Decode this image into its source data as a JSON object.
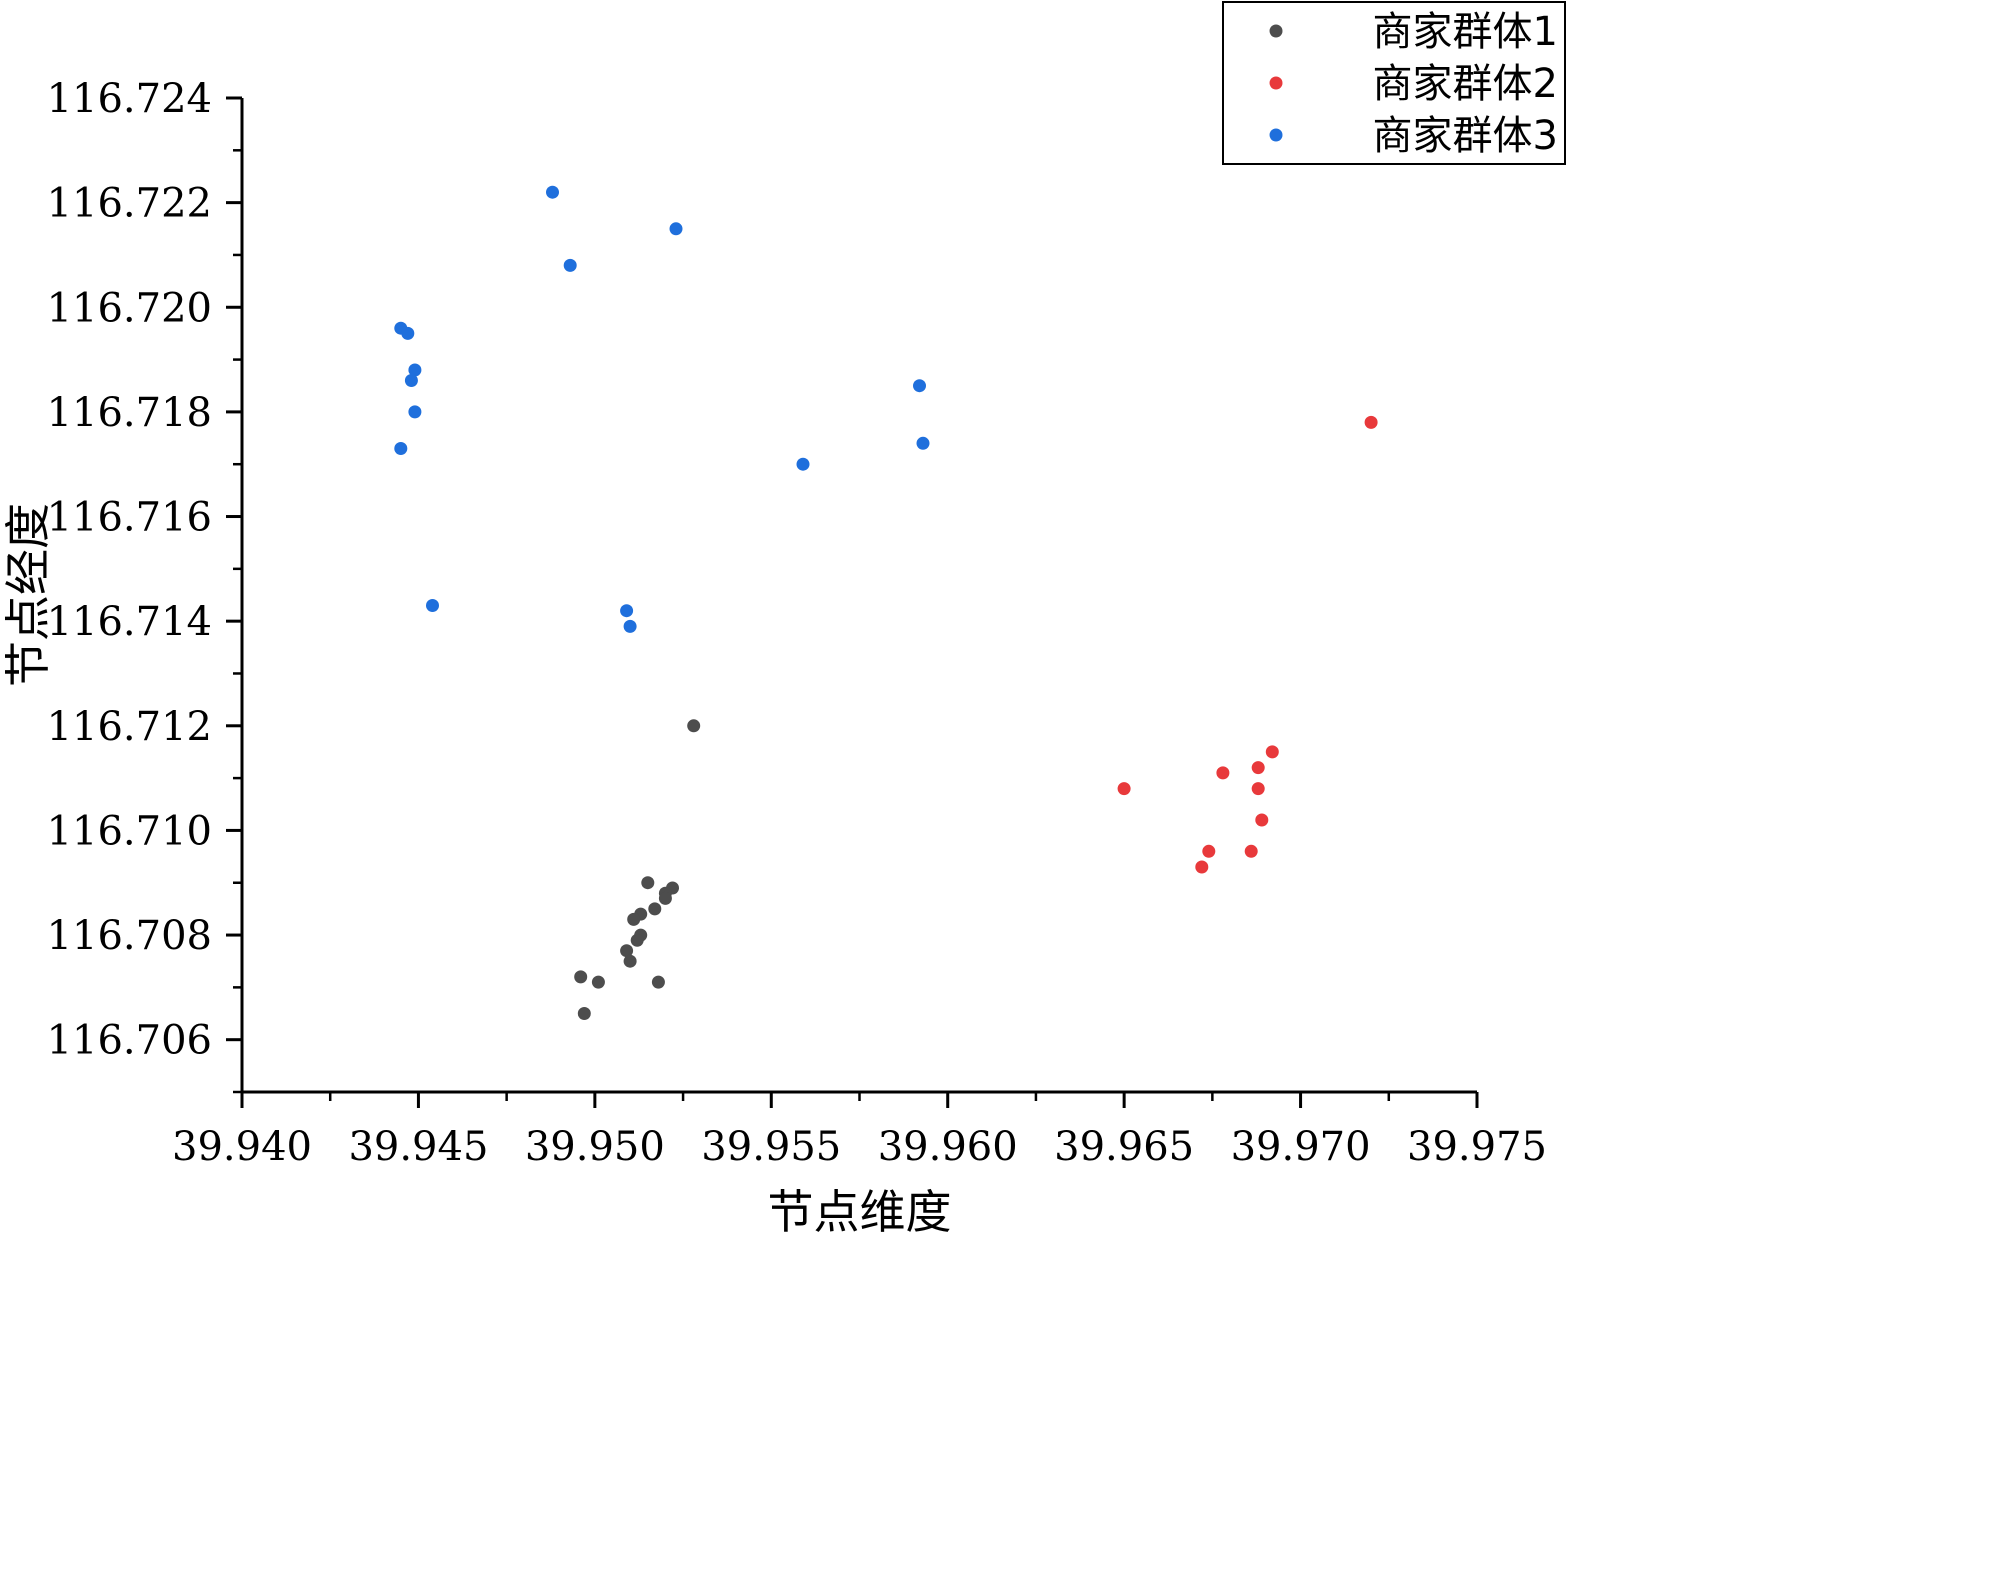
{
  "chart_data": {
    "type": "scatter",
    "title": "",
    "xlabel": "节点维度",
    "ylabel": "节点经度",
    "xlim": [
      39.94,
      39.975
    ],
    "ylim": [
      116.705,
      116.724
    ],
    "xticks": [
      "39.940",
      "39.945",
      "39.950",
      "39.955",
      "39.960",
      "39.965",
      "39.970",
      "39.975"
    ],
    "yticks": [
      "116.706",
      "116.708",
      "116.710",
      "116.712",
      "116.714",
      "116.716",
      "116.718",
      "116.720",
      "116.722",
      "116.724"
    ],
    "grid": false,
    "legend_position": "top-right",
    "series": [
      {
        "name": "商家群体1",
        "color": "#4d4d4d",
        "points": [
          [
            39.9528,
            116.712
          ],
          [
            39.9515,
            116.709
          ],
          [
            39.9522,
            116.7089
          ],
          [
            39.952,
            116.7088
          ],
          [
            39.952,
            116.7087
          ],
          [
            39.9517,
            116.7085
          ],
          [
            39.9513,
            116.7084
          ],
          [
            39.9511,
            116.7083
          ],
          [
            39.9513,
            116.708
          ],
          [
            39.9512,
            116.7079
          ],
          [
            39.9509,
            116.7077
          ],
          [
            39.951,
            116.7075
          ],
          [
            39.9496,
            116.7072
          ],
          [
            39.9501,
            116.7071
          ],
          [
            39.9518,
            116.7071
          ],
          [
            39.9497,
            116.7065
          ]
        ]
      },
      {
        "name": "商家群体2",
        "color": "#e8393b",
        "points": [
          [
            39.972,
            116.7178
          ],
          [
            39.9692,
            116.7115
          ],
          [
            39.9688,
            116.7112
          ],
          [
            39.9678,
            116.7111
          ],
          [
            39.965,
            116.7108
          ],
          [
            39.9688,
            116.7108
          ],
          [
            39.9689,
            116.7102
          ],
          [
            39.9674,
            116.7096
          ],
          [
            39.9686,
            116.7096
          ],
          [
            39.9672,
            116.7093
          ]
        ]
      },
      {
        "name": "商家群体3",
        "color": "#1f6fdc",
        "points": [
          [
            39.9488,
            116.7222
          ],
          [
            39.9523,
            116.7215
          ],
          [
            39.9493,
            116.7208
          ],
          [
            39.9445,
            116.7196
          ],
          [
            39.9447,
            116.7195
          ],
          [
            39.9449,
            116.7188
          ],
          [
            39.9448,
            116.7186
          ],
          [
            39.9449,
            116.718
          ],
          [
            39.9445,
            116.7173
          ],
          [
            39.9592,
            116.7185
          ],
          [
            39.9593,
            116.7174
          ],
          [
            39.9559,
            116.717
          ],
          [
            39.9454,
            116.7143
          ],
          [
            39.9509,
            116.7142
          ],
          [
            39.951,
            116.7139
          ]
        ]
      }
    ]
  }
}
